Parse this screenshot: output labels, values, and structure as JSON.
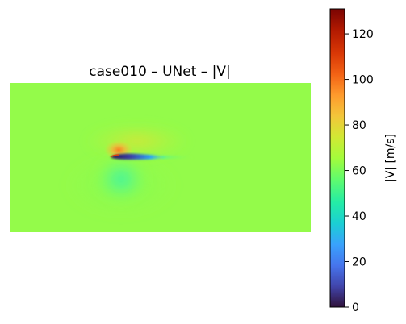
{
  "chart_data": {
    "type": "heatmap",
    "title": "case010 – UNet – |V|",
    "colorbar": {
      "label": "|V| [m/s]",
      "range": [
        0,
        131
      ],
      "ticks": [
        "0",
        "20",
        "40",
        "60",
        "80",
        "100",
        "120"
      ],
      "tick_values": [
        0,
        20,
        40,
        60,
        80,
        100,
        120
      ],
      "colormap": "turbo"
    },
    "field": {
      "freestream_value": 63,
      "features": [
        {
          "name": "stagnation region at leading edge",
          "value": 100
        },
        {
          "name": "suction peak on upper surface",
          "value": 95
        },
        {
          "name": "low-velocity wake under airfoil",
          "value": 10
        },
        {
          "name": "reduced-speed region below airfoil",
          "value": 52
        }
      ]
    },
    "axes_visible": false,
    "grid": false
  }
}
